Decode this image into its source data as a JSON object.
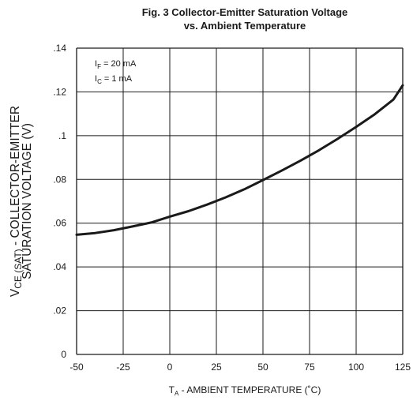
{
  "chart_data": {
    "type": "line",
    "title": "Fig. 3  Collector-Emitter Saturation Voltage",
    "subtitle": "vs. Ambient Temperature",
    "xlabel": {
      "main": "T",
      "sub": "A",
      "rest": " - AMBIENT TEMPERATURE (˚C)"
    },
    "ylabel": {
      "line1_main": "V",
      "line1_sub": "CE (SAT)",
      "line1_rest": " - COLLECTOR-EMITTER",
      "line2": "SATURATION VOLTAGE  (V)"
    },
    "xlim": [
      -50,
      125
    ],
    "ylim": [
      0,
      0.14
    ],
    "x_ticks": [
      -50,
      -25,
      0,
      25,
      50,
      75,
      100,
      125
    ],
    "x_tick_labels": [
      "-50",
      "-25",
      "0",
      "25",
      "50",
      "75",
      "100",
      "125"
    ],
    "y_ticks": [
      0,
      0.02,
      0.04,
      0.06,
      0.08,
      0.1,
      0.12,
      0.14
    ],
    "y_tick_labels": [
      "0",
      ".02",
      ".04",
      ".06",
      ".08",
      ".1",
      ".12",
      ".14"
    ],
    "grid": true,
    "conditions": [
      {
        "main": "I",
        "sub": "F",
        "rest": " = 20 mA"
      },
      {
        "main": "I",
        "sub": "C",
        "rest": " = 1 mA"
      }
    ],
    "series": [
      {
        "x": [
          -50,
          -40,
          -30,
          -20,
          -10,
          0,
          10,
          20,
          30,
          40,
          50,
          60,
          70,
          80,
          90,
          100,
          110,
          120,
          125
        ],
        "y": [
          0.0547,
          0.0555,
          0.0568,
          0.0585,
          0.0603,
          0.063,
          0.0655,
          0.0685,
          0.0718,
          0.0755,
          0.0797,
          0.084,
          0.0885,
          0.0933,
          0.0985,
          0.104,
          0.1098,
          0.1165,
          0.123
        ]
      }
    ]
  },
  "style": {
    "line_color": "#1a1a1a",
    "grid_color": "#1a1a1a",
    "background": "#ffffff"
  }
}
